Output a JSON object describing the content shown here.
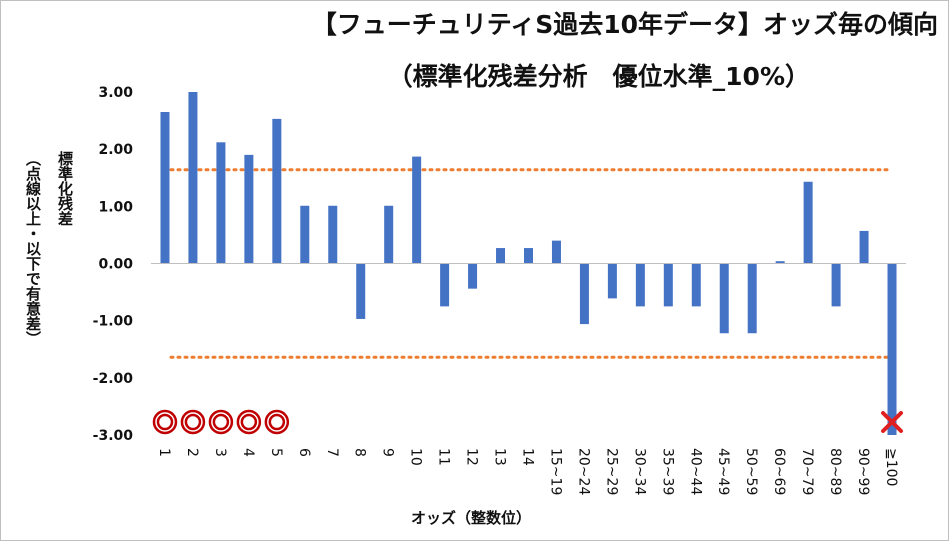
{
  "chart_data": {
    "type": "bar",
    "title": "【フューチュリティS過去10年データ】オッズ毎の傾向",
    "subtitle": "（標準化残差分析　優位水準_10%）",
    "xlabel": "オッズ（整数位）",
    "ylabel": "標準化残差",
    "ylabel_note": "（点線以上・以下で有意差）",
    "ylim": [
      -3,
      3
    ],
    "yticks": [
      "3.00",
      "2.00",
      "1.00",
      "0.00",
      "-1.00",
      "-2.00",
      "-3.00"
    ],
    "grid": false,
    "legend": "none",
    "threshold_upper": 1.64,
    "threshold_lower": -1.64,
    "categories": [
      "1",
      "2",
      "3",
      "4",
      "5",
      "6",
      "7",
      "8",
      "9",
      "10",
      "11",
      "12",
      "13",
      "14",
      "15~19",
      "20~24",
      "25~29",
      "30~34",
      "35~39",
      "40~44",
      "45~49",
      "50~59",
      "60~69",
      "70~79",
      "80~89",
      "90~99",
      "≧100"
    ],
    "values": [
      2.65,
      3.0,
      2.12,
      1.9,
      2.53,
      1.01,
      1.01,
      -0.97,
      1.01,
      1.87,
      -0.75,
      -0.44,
      0.27,
      0.27,
      0.4,
      -1.06,
      -0.61,
      -0.75,
      -0.75,
      -0.75,
      -1.22,
      -1.22,
      0.04,
      1.43,
      -0.75,
      0.57,
      -3.0
    ],
    "markers": [
      {
        "category": "1",
        "symbol": "circle"
      },
      {
        "category": "2",
        "symbol": "circle"
      },
      {
        "category": "3",
        "symbol": "circle"
      },
      {
        "category": "4",
        "symbol": "circle"
      },
      {
        "category": "5",
        "symbol": "circle"
      },
      {
        "category": "≧100",
        "symbol": "cross"
      }
    ]
  },
  "colors": {
    "bar": "#4472c4",
    "threshold": "#ed7d31",
    "axis": "#bfbfbf",
    "circle_marker": "#c00000",
    "cross_marker": "#e02020"
  }
}
